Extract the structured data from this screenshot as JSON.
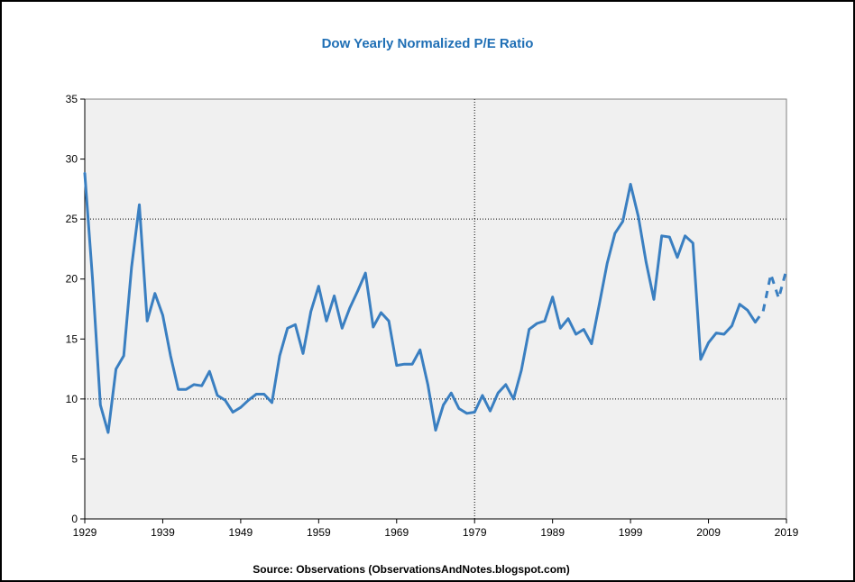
{
  "chart_data": {
    "type": "line",
    "title": "Dow Yearly Normalized P/E Ratio",
    "xlabel": "",
    "ylabel": "",
    "source": "Source: Observations (ObservationsAndNotes.blogspot.com)",
    "xlim": [
      1929,
      2019
    ],
    "ylim": [
      0,
      35
    ],
    "x_ticks": [
      1929,
      1939,
      1949,
      1959,
      1969,
      1979,
      1989,
      1999,
      2009,
      2019
    ],
    "y_ticks": [
      0,
      5,
      10,
      15,
      20,
      25,
      30,
      35
    ],
    "gridlines_y": [
      10,
      25
    ],
    "gridlines_x": [
      1979
    ],
    "plot_background": "#f0f0f0",
    "line_color": "#3a7fc1",
    "series": [
      {
        "style": "solid",
        "points": [
          [
            1929,
            28.8
          ],
          [
            1930,
            20.0
          ],
          [
            1931,
            9.5
          ],
          [
            1932,
            7.2
          ],
          [
            1933,
            12.5
          ],
          [
            1934,
            13.6
          ],
          [
            1935,
            21.0
          ],
          [
            1936,
            26.2
          ],
          [
            1937,
            16.5
          ],
          [
            1938,
            18.8
          ],
          [
            1939,
            17.0
          ],
          [
            1940,
            13.6
          ],
          [
            1941,
            10.8
          ],
          [
            1942,
            10.8
          ],
          [
            1943,
            11.2
          ],
          [
            1944,
            11.1
          ],
          [
            1945,
            12.3
          ],
          [
            1946,
            10.3
          ],
          [
            1947,
            9.9
          ],
          [
            1948,
            8.9
          ],
          [
            1949,
            9.3
          ],
          [
            1950,
            9.9
          ],
          [
            1951,
            10.4
          ],
          [
            1952,
            10.4
          ],
          [
            1953,
            9.7
          ],
          [
            1954,
            13.6
          ],
          [
            1955,
            15.9
          ],
          [
            1956,
            16.2
          ],
          [
            1957,
            13.8
          ],
          [
            1958,
            17.3
          ],
          [
            1959,
            19.4
          ],
          [
            1960,
            16.5
          ],
          [
            1961,
            18.6
          ],
          [
            1962,
            15.9
          ],
          [
            1963,
            17.6
          ],
          [
            1964,
            19.0
          ],
          [
            1965,
            20.5
          ],
          [
            1966,
            16.0
          ],
          [
            1967,
            17.2
          ],
          [
            1968,
            16.5
          ],
          [
            1969,
            12.8
          ],
          [
            1970,
            12.9
          ],
          [
            1971,
            12.9
          ],
          [
            1972,
            14.1
          ],
          [
            1973,
            11.2
          ],
          [
            1974,
            7.4
          ],
          [
            1975,
            9.5
          ],
          [
            1976,
            10.5
          ],
          [
            1977,
            9.2
          ],
          [
            1978,
            8.8
          ],
          [
            1979,
            8.9
          ],
          [
            1980,
            10.3
          ],
          [
            1981,
            9.0
          ],
          [
            1982,
            10.5
          ],
          [
            1983,
            11.2
          ],
          [
            1984,
            10.0
          ],
          [
            1985,
            12.4
          ],
          [
            1986,
            15.8
          ],
          [
            1987,
            16.3
          ],
          [
            1988,
            16.5
          ],
          [
            1989,
            18.5
          ],
          [
            1990,
            15.9
          ],
          [
            1991,
            16.7
          ],
          [
            1992,
            15.4
          ],
          [
            1993,
            15.8
          ],
          [
            1994,
            14.6
          ],
          [
            1995,
            17.9
          ],
          [
            1996,
            21.3
          ],
          [
            1997,
            23.8
          ],
          [
            1998,
            24.8
          ],
          [
            1999,
            27.9
          ],
          [
            2000,
            25.2
          ],
          [
            2001,
            21.4
          ],
          [
            2002,
            18.3
          ],
          [
            2003,
            23.6
          ],
          [
            2004,
            23.5
          ],
          [
            2005,
            21.8
          ],
          [
            2006,
            23.6
          ],
          [
            2007,
            23.0
          ],
          [
            2008,
            13.3
          ],
          [
            2009,
            14.7
          ],
          [
            2010,
            15.5
          ],
          [
            2011,
            15.4
          ],
          [
            2012,
            16.1
          ],
          [
            2013,
            17.9
          ],
          [
            2014,
            17.4
          ],
          [
            2015,
            16.4
          ]
        ]
      },
      {
        "style": "dashed",
        "points": [
          [
            2015,
            16.4
          ],
          [
            2016,
            17.3
          ],
          [
            2017,
            20.4
          ],
          [
            2018,
            18.4
          ],
          [
            2019,
            20.8
          ]
        ]
      }
    ]
  }
}
